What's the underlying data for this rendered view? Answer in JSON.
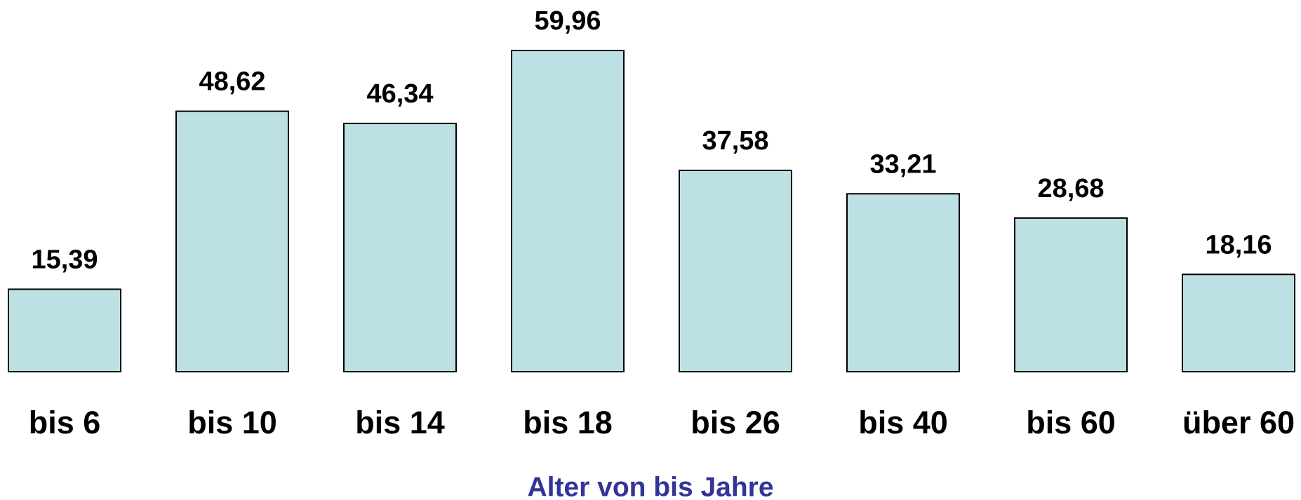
{
  "chart_data": {
    "type": "bar",
    "x_label": "Alter von bis Jahre",
    "categories": [
      "bis 6",
      "bis 10",
      "bis 14",
      "bis 18",
      "bis 26",
      "bis 40",
      "bis 60",
      "über 60"
    ],
    "values": [
      15.39,
      48.62,
      46.34,
      59.96,
      37.58,
      33.21,
      28.68,
      18.16
    ],
    "value_labels": [
      "15,39",
      "48,62",
      "46,34",
      "59,96",
      "37,58",
      "33,21",
      "28,68",
      "18,16"
    ],
    "color": "#bde0e4"
  }
}
